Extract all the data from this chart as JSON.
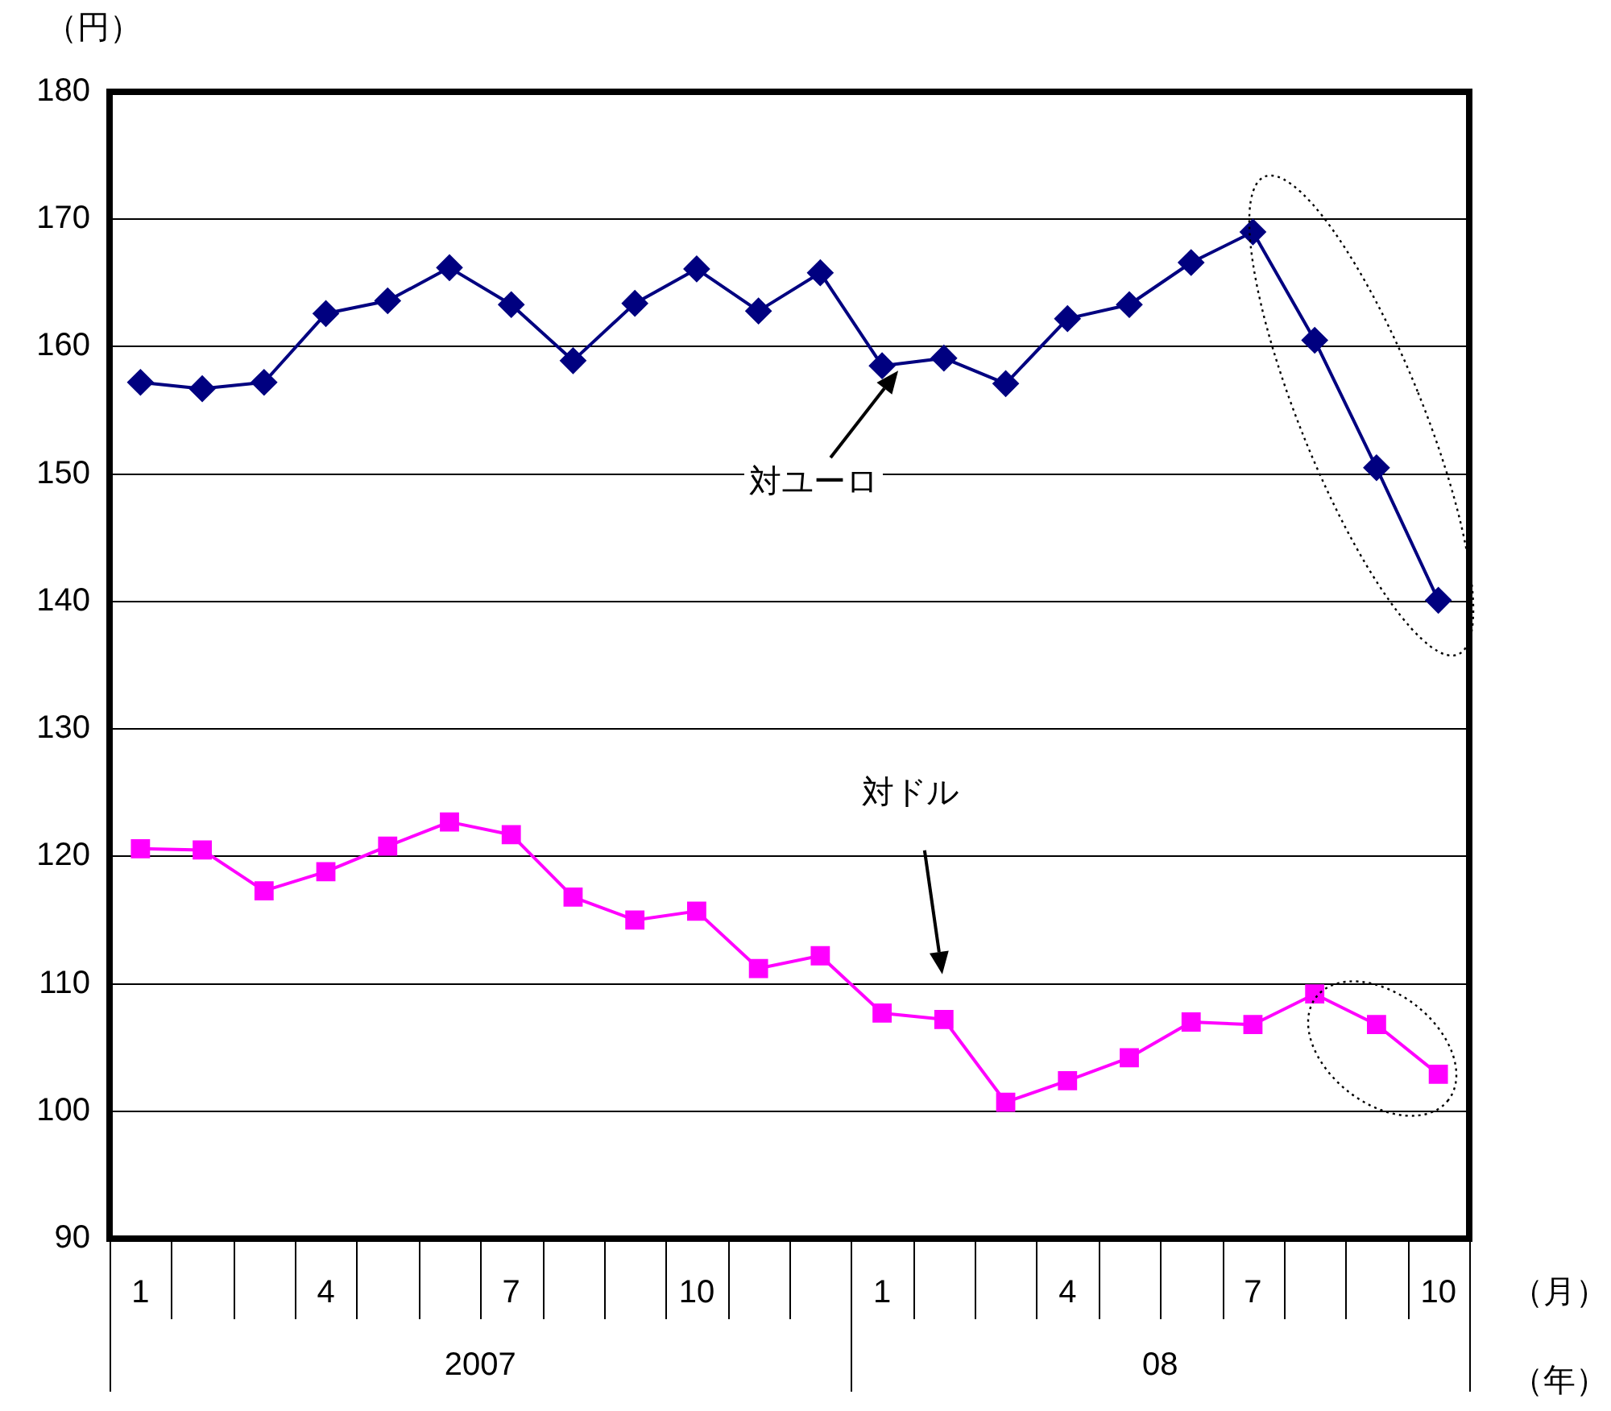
{
  "chart_data": {
    "type": "line",
    "ylabel": "（円）",
    "categories": [
      "1",
      null,
      null,
      "4",
      null,
      null,
      "7",
      null,
      null,
      "10",
      null,
      null,
      "1",
      null,
      null,
      "4",
      null,
      null,
      "7",
      null,
      null,
      "10"
    ],
    "series": [
      {
        "color": "#000080",
        "marker": "diamond",
        "values": [
          157.2,
          156.7,
          157.2,
          162.6,
          163.6,
          166.2,
          163.3,
          158.9,
          163.4,
          166.1,
          162.8,
          165.8,
          158.5,
          159.1,
          157.1,
          162.2,
          163.3,
          166.6,
          169.0,
          160.5,
          150.5,
          140.1
        ]
      },
      {
        "color": "#ff00ff",
        "marker": "square",
        "values": [
          120.6,
          120.5,
          117.3,
          118.8,
          120.8,
          122.7,
          121.7,
          116.8,
          115.0,
          115.7,
          111.2,
          112.2,
          107.7,
          107.2,
          100.7,
          102.4,
          104.2,
          107.0,
          106.8,
          109.2,
          106.8,
          102.9
        ]
      }
    ],
    "ylim": [
      90,
      180
    ],
    "yticks": [
      90,
      100,
      110,
      120,
      130,
      140,
      150,
      160,
      170,
      180
    ],
    "grid": "y",
    "legend": false,
    "annotations": [
      "対ユーロ",
      "対ドル",
      "（月）",
      "（年）",
      "2007",
      "08"
    ]
  }
}
